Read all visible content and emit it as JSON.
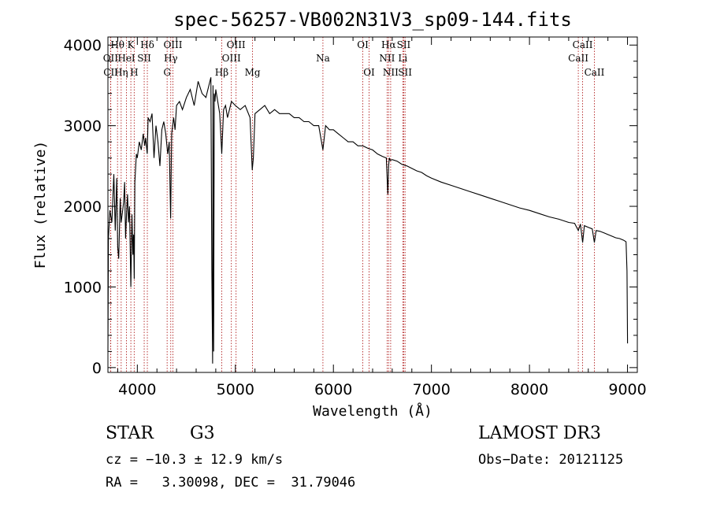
{
  "chart_data": {
    "type": "line",
    "title": "spec-56257-VB002N31V3_sp09-144.fits",
    "xlabel": "Wavelength (Å)",
    "ylabel": "Flux (relative)",
    "xlim": [
      3700,
      9100
    ],
    "ylim": [
      -60,
      4100
    ],
    "xticks": [
      4000,
      5000,
      6000,
      7000,
      8000,
      9000
    ],
    "yticks": [
      0,
      1000,
      2000,
      3000,
      4000
    ],
    "grid": false,
    "line_color": "#000000",
    "marker_color": "#b22222",
    "spectrum": {
      "x": [
        3700,
        3705,
        3720,
        3740,
        3760,
        3775,
        3790,
        3800,
        3810,
        3825,
        3835,
        3850,
        3860,
        3870,
        3880,
        3890,
        3900,
        3910,
        3920,
        3934,
        3945,
        3955,
        3962,
        3968,
        3975,
        3990,
        4000,
        4020,
        4040,
        4060,
        4075,
        4085,
        4101,
        4110,
        4130,
        4150,
        4170,
        4190,
        4210,
        4230,
        4250,
        4270,
        4290,
        4310,
        4325,
        4340,
        4350,
        4370,
        4385,
        4400,
        4430,
        4460,
        4500,
        4540,
        4580,
        4620,
        4660,
        4700,
        4730,
        4750,
        4760,
        4768,
        4772,
        4778,
        4785,
        4792,
        4800,
        4820,
        4840,
        4861,
        4880,
        4900,
        4920,
        4960,
        5000,
        5050,
        5100,
        5150,
        5172,
        5183,
        5200,
        5250,
        5300,
        5350,
        5400,
        5450,
        5500,
        5550,
        5600,
        5650,
        5700,
        5750,
        5800,
        5850,
        5893,
        5920,
        5960,
        6000,
        6050,
        6100,
        6150,
        6200,
        6250,
        6300,
        6350,
        6400,
        6450,
        6500,
        6540,
        6555,
        6563,
        6570,
        6580,
        6600,
        6650,
        6700,
        6750,
        6800,
        6850,
        6900,
        6950,
        7000,
        7100,
        7200,
        7300,
        7400,
        7500,
        7600,
        7700,
        7800,
        7900,
        8000,
        8100,
        8200,
        8300,
        8400,
        8460,
        8498,
        8520,
        8542,
        8560,
        8600,
        8640,
        8662,
        8680,
        8720,
        8760,
        8800,
        8840,
        8880,
        8920,
        8960,
        8985,
        8995,
        9000
      ],
      "y": [
        200,
        1600,
        1950,
        1800,
        2400,
        1700,
        2350,
        1500,
        1350,
        2100,
        1800,
        1950,
        2050,
        2300,
        1600,
        1900,
        2150,
        1800,
        2000,
        1000,
        1900,
        1400,
        1650,
        1100,
        2300,
        2650,
        2600,
        2800,
        2700,
        2900,
        2750,
        2850,
        2650,
        3100,
        3050,
        3150,
        2600,
        3000,
        2800,
        2500,
        2950,
        3050,
        2900,
        2650,
        2800,
        1850,
        2900,
        3100,
        2950,
        3250,
        3300,
        3200,
        3350,
        3450,
        3250,
        3550,
        3400,
        3350,
        3500,
        3600,
        1200,
        50,
        3500,
        200,
        3400,
        3300,
        3450,
        3300,
        3150,
        2650,
        3200,
        3250,
        3100,
        3300,
        3250,
        3200,
        3250,
        3100,
        2450,
        2600,
        3150,
        3200,
        3250,
        3150,
        3200,
        3150,
        3150,
        3150,
        3100,
        3100,
        3050,
        3050,
        3000,
        3000,
        2700,
        3000,
        2950,
        2950,
        2900,
        2850,
        2800,
        2800,
        2750,
        2750,
        2720,
        2700,
        2650,
        2620,
        2600,
        2150,
        2500,
        2600,
        2570,
        2580,
        2560,
        2520,
        2500,
        2470,
        2440,
        2420,
        2380,
        2350,
        2300,
        2260,
        2220,
        2180,
        2140,
        2100,
        2060,
        2020,
        1980,
        1950,
        1910,
        1870,
        1840,
        1800,
        1790,
        1700,
        1780,
        1550,
        1760,
        1740,
        1720,
        1550,
        1700,
        1690,
        1670,
        1650,
        1630,
        1610,
        1600,
        1580,
        1560,
        1200,
        300
      ]
    },
    "lines": [
      {
        "name": "Hθ",
        "wavelength": 3798,
        "row": 0
      },
      {
        "name": "OII",
        "wavelength": 3727,
        "row": 1
      },
      {
        "name": "CII",
        "wavelength": 3729,
        "row": 2
      },
      {
        "name": "Hη",
        "wavelength": 3835,
        "row": 2
      },
      {
        "name": "HeI",
        "wavelength": 3889,
        "row": 1
      },
      {
        "name": "K",
        "wavelength": 3934,
        "row": 0
      },
      {
        "name": "H",
        "wavelength": 3968,
        "row": 2
      },
      {
        "name": "SII",
        "wavelength": 4070,
        "row": 1
      },
      {
        "name": "Hδ",
        "wavelength": 4102,
        "row": 0
      },
      {
        "name": "G",
        "wavelength": 4304,
        "row": 2
      },
      {
        "name": "OIII",
        "wavelength": 4363,
        "row": 0
      },
      {
        "name": "Hγ",
        "wavelength": 4341,
        "row": 1
      },
      {
        "name": "Hβ",
        "wavelength": 4861,
        "row": 2
      },
      {
        "name": "OIII",
        "wavelength": 4959,
        "row": 1
      },
      {
        "name": "OIII",
        "wavelength": 5007,
        "row": 0
      },
      {
        "name": "Mg",
        "wavelength": 5175,
        "row": 2
      },
      {
        "name": "Na",
        "wavelength": 5893,
        "row": 1
      },
      {
        "name": "OI",
        "wavelength": 6300,
        "row": 0
      },
      {
        "name": "OI",
        "wavelength": 6364,
        "row": 2
      },
      {
        "name": "NII",
        "wavelength": 6548,
        "row": 1
      },
      {
        "name": "Hα",
        "wavelength": 6563,
        "row": 0
      },
      {
        "name": "NII",
        "wavelength": 6584,
        "row": 2
      },
      {
        "name": "Li",
        "wavelength": 6708,
        "row": 1
      },
      {
        "name": "SII",
        "wavelength": 6717,
        "row": 0
      },
      {
        "name": "SII",
        "wavelength": 6731,
        "row": 2
      },
      {
        "name": "CaII",
        "wavelength": 8498,
        "row": 1
      },
      {
        "name": "CaII",
        "wavelength": 8542,
        "row": 0
      },
      {
        "name": "CaII",
        "wavelength": 8662,
        "row": 2
      }
    ]
  },
  "info": {
    "class": "STAR",
    "subclass": "G3",
    "survey": "LAMOST DR3",
    "cz": "cz = −10.3 ± 12.9 km/s",
    "obs_date": "Obs−Date: 20121125",
    "radec": "RA =   3.30098, DEC =  31.79046"
  }
}
